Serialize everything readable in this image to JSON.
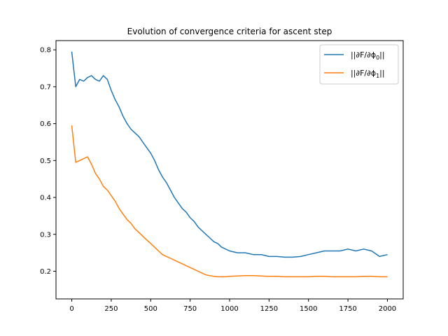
{
  "chart_data": {
    "type": "line",
    "title": "Evolution of convergence criteria for ascent step",
    "xlabel": "",
    "ylabel": "",
    "xlim": [
      -100,
      2100
    ],
    "ylim": [
      0.125,
      0.825
    ],
    "xticks": [
      0,
      250,
      500,
      750,
      1000,
      1250,
      1500,
      1750,
      2000
    ],
    "xtick_labels": [
      "0",
      "250",
      "500",
      "750",
      "1000",
      "1250",
      "1500",
      "1750",
      "2000"
    ],
    "yticks": [
      0.2,
      0.3,
      0.4,
      0.5,
      0.6,
      0.7,
      0.8
    ],
    "ytick_labels": [
      "0.2",
      "0.3",
      "0.4",
      "0.5",
      "0.6",
      "0.7",
      "0.8"
    ],
    "grid": false,
    "legend": "top-right",
    "series": [
      {
        "name": "||∂F/∂ϕ0||",
        "legend_main": "||∂F/∂ϕ",
        "legend_sub": "0",
        "color": "#1f77b4",
        "x": [
          0,
          25,
          50,
          75,
          100,
          125,
          150,
          175,
          200,
          225,
          250,
          275,
          300,
          325,
          350,
          375,
          400,
          425,
          450,
          475,
          500,
          525,
          550,
          575,
          600,
          625,
          650,
          675,
          700,
          725,
          750,
          775,
          800,
          825,
          850,
          875,
          900,
          925,
          950,
          975,
          1000,
          1050,
          1100,
          1150,
          1200,
          1250,
          1300,
          1350,
          1400,
          1450,
          1500,
          1550,
          1600,
          1650,
          1700,
          1750,
          1800,
          1850,
          1900,
          1950,
          2000
        ],
        "y": [
          0.795,
          0.7,
          0.72,
          0.715,
          0.725,
          0.73,
          0.72,
          0.715,
          0.73,
          0.72,
          0.69,
          0.665,
          0.645,
          0.62,
          0.6,
          0.585,
          0.575,
          0.565,
          0.55,
          0.535,
          0.52,
          0.5,
          0.475,
          0.455,
          0.44,
          0.42,
          0.4,
          0.385,
          0.37,
          0.36,
          0.345,
          0.335,
          0.32,
          0.31,
          0.3,
          0.29,
          0.28,
          0.275,
          0.265,
          0.26,
          0.255,
          0.25,
          0.25,
          0.245,
          0.245,
          0.24,
          0.24,
          0.238,
          0.238,
          0.24,
          0.245,
          0.25,
          0.255,
          0.255,
          0.255,
          0.26,
          0.255,
          0.26,
          0.255,
          0.24,
          0.245
        ]
      },
      {
        "name": "||∂F/∂ϕ1||",
        "legend_main": "||∂F/∂ϕ",
        "legend_sub": "1",
        "color": "#ff7f0e",
        "x": [
          0,
          25,
          50,
          75,
          100,
          125,
          150,
          175,
          200,
          225,
          250,
          275,
          300,
          325,
          350,
          375,
          400,
          425,
          450,
          475,
          500,
          525,
          550,
          575,
          600,
          625,
          650,
          675,
          700,
          725,
          750,
          775,
          800,
          825,
          850,
          875,
          900,
          925,
          950,
          975,
          1000,
          1050,
          1100,
          1150,
          1200,
          1250,
          1300,
          1350,
          1400,
          1450,
          1500,
          1550,
          1600,
          1650,
          1700,
          1750,
          1800,
          1850,
          1900,
          1950,
          2000
        ],
        "y": [
          0.595,
          0.495,
          0.5,
          0.505,
          0.51,
          0.49,
          0.465,
          0.45,
          0.43,
          0.42,
          0.405,
          0.39,
          0.37,
          0.355,
          0.34,
          0.33,
          0.315,
          0.305,
          0.295,
          0.285,
          0.275,
          0.265,
          0.255,
          0.245,
          0.24,
          0.235,
          0.23,
          0.225,
          0.22,
          0.215,
          0.21,
          0.205,
          0.2,
          0.195,
          0.19,
          0.188,
          0.186,
          0.185,
          0.185,
          0.185,
          0.186,
          0.187,
          0.188,
          0.188,
          0.187,
          0.186,
          0.186,
          0.185,
          0.185,
          0.185,
          0.185,
          0.186,
          0.186,
          0.185,
          0.185,
          0.185,
          0.185,
          0.186,
          0.186,
          0.185,
          0.185
        ]
      }
    ]
  }
}
